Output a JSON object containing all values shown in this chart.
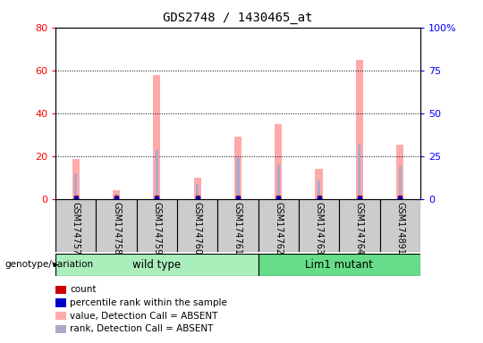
{
  "title": "GDS2748 / 1430465_at",
  "samples": [
    "GSM174757",
    "GSM174758",
    "GSM174759",
    "GSM174760",
    "GSM174761",
    "GSM174762",
    "GSM174763",
    "GSM174764",
    "GSM174891"
  ],
  "groups": {
    "wild type": [
      0,
      1,
      2,
      3,
      4
    ],
    "Lim1 mutant": [
      5,
      6,
      7,
      8
    ]
  },
  "absent_value_bars": [
    18.5,
    4.0,
    58.0,
    10.0,
    29.0,
    35.0,
    14.0,
    65.0,
    25.5
  ],
  "absent_rank_bars": [
    12.0,
    2.5,
    23.0,
    7.0,
    19.0,
    16.0,
    8.5,
    25.5,
    15.5
  ],
  "ylim_left": [
    0,
    80
  ],
  "ylim_right": [
    0,
    100
  ],
  "yticks_left": [
    0,
    20,
    40,
    60,
    80
  ],
  "yticks_right": [
    0,
    25,
    50,
    75,
    100
  ],
  "ytick_labels_right": [
    "0",
    "25",
    "50",
    "75",
    "100%"
  ],
  "color_count": "#cc0000",
  "color_percentile": "#0000cc",
  "color_absent_value": "#ffaaaa",
  "color_absent_rank": "#aaaacc",
  "color_wt_bg": "#aaeebb",
  "color_mutant_bg": "#66dd88",
  "color_sample_bg": "#cccccc",
  "legend_items": [
    {
      "label": "count",
      "color": "#cc0000"
    },
    {
      "label": "percentile rank within the sample",
      "color": "#0000cc"
    },
    {
      "label": "value, Detection Call = ABSENT",
      "color": "#ffaaaa"
    },
    {
      "label": "rank, Detection Call = ABSENT",
      "color": "#aaaacc"
    }
  ]
}
